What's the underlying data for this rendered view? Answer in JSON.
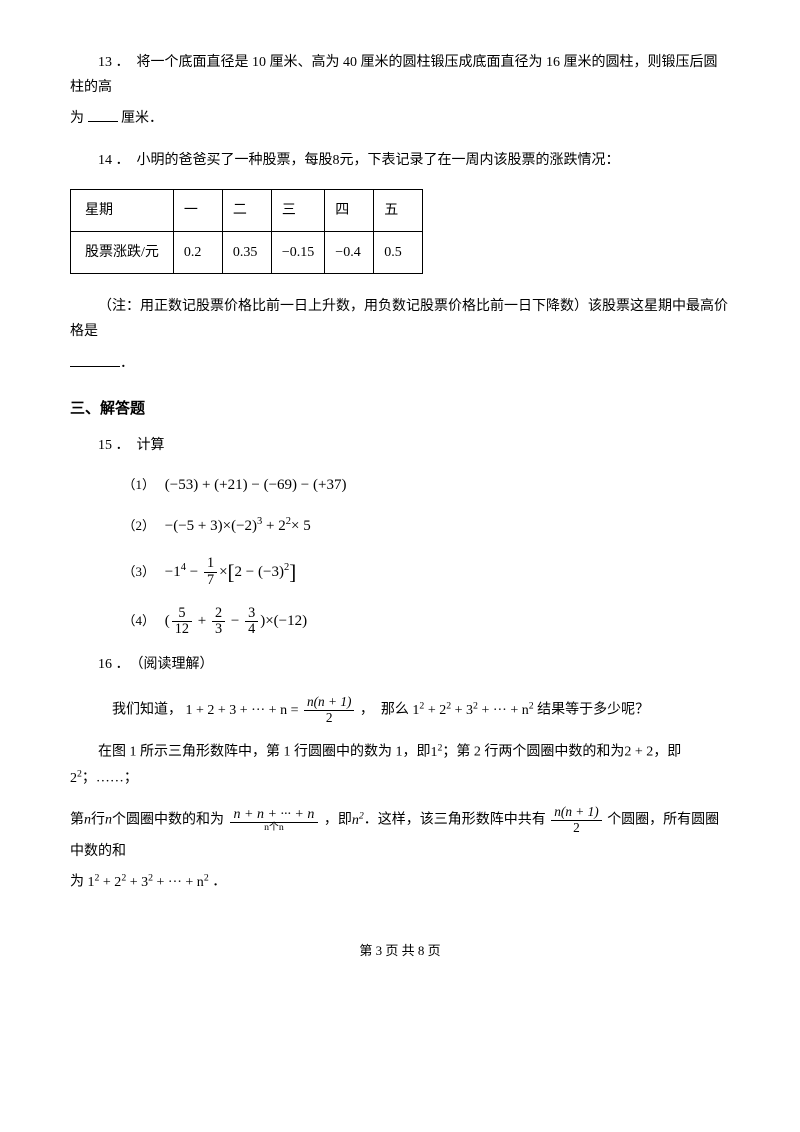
{
  "q13": {
    "num": "13",
    "text_a": "．　将一个底面直径是 10 厘米、高为 40 厘米的圆柱锻压成底面直径为 16 厘米的圆柱，则锻压后圆柱的高",
    "text_b": "为",
    "text_c": "厘米．"
  },
  "q14": {
    "num": "14",
    "text_a": "．　小明的爸爸买了一种股票，每股",
    "eight": "8",
    "text_b": "元，下表记录了在一周内该股票的涨跌情况：",
    "table": {
      "r1": [
        "星期",
        "一",
        "二",
        "三",
        "四",
        "五"
      ],
      "r2": [
        "股票涨跌/元",
        "0.2",
        "0.35",
        "−0.15",
        "−0.4",
        "0.5"
      ]
    },
    "note": "（注：用正数记股票价格比前一日上升数，用负数记股票价格比前一日下降数）该股票这星期中最高价格是",
    "period": "．"
  },
  "section3": "三、解答题",
  "q15": {
    "num": "15",
    "label": "．　计算",
    "i1": "（1）",
    "e1": "(−53) + (+21) − (−69) − (+37)",
    "i2": "（2）",
    "e2_a": "−(−5 + 3)×(−2)",
    "e2_b": " + 2",
    "e2_c": "× 5",
    "i3": "（3）",
    "e3_a": "−1",
    "e3_b": " − ",
    "frac3n": "1",
    "frac3d": "7",
    "e3_c": "×",
    "e3_d": "2 − (−3)",
    "i4": "（4）",
    "f4an": "5",
    "f4ad": "12",
    "f4bn": "2",
    "f4bd": "3",
    "f4cn": "3",
    "f4cd": "4",
    "e4_tail": ")×(−12)"
  },
  "q16": {
    "num": "16",
    "label": "．　（阅读理解）",
    "we_know": "我们知道，",
    "sum_lhs": "1 + 2 + 3 + ··· + n = ",
    "sum_num": "n(n + 1)",
    "sum_den": "2",
    "then": "，　那么",
    "sq_sum": "1",
    "sq_b": " + 2",
    "sq_c": " + 3",
    "sq_d": " + ··· + n",
    "res_q": "结果等于多少呢？",
    "p2a": "在图 1 所示三角形数阵中，第 1 行圆圈中的数为 1，即",
    "one": "1",
    "p2b": "；第 2 行两个圆圈中数的和为",
    "two_plus": "2 + 2",
    "p2c": "，即",
    "two": "2",
    "p2d": "；……；",
    "p3a": "第",
    "n": "n",
    "p3b": "行",
    "p3c": "个圆圈中数的和为",
    "ob_top": "n + n + ··· + n",
    "ob_bot": "n个n",
    "p3d": "，即",
    "p3e": "．这样，该三角形数阵中共有",
    "frac_num2": "n(n + 1)",
    "frac_den2": "2",
    "p3f": "个圆圈，所有圆圈中数的和",
    "p3g": "为",
    "period2": "．"
  },
  "footer": "第 3 页 共 8 页"
}
